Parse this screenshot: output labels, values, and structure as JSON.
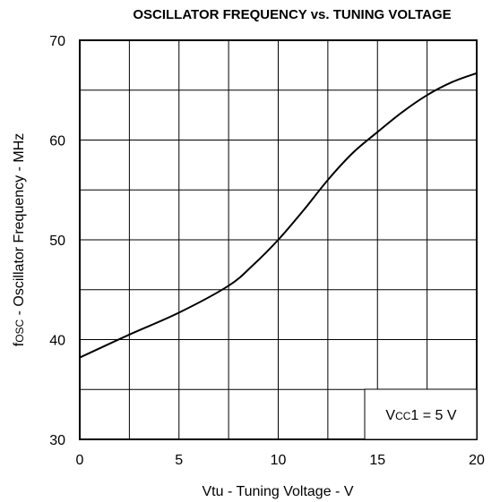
{
  "chart_data": {
    "type": "line",
    "title": "OSCILLATOR FREQUENCY vs. TUNING VOLTAGE",
    "xlabel": "Vtu - Tuning Voltage - V",
    "ylabel": {
      "symbol": "f",
      "subscript": "OSC",
      "text": " - Oscillator Frequency - MHz"
    },
    "annotation": {
      "symbol": "V",
      "subscript": "CC",
      "text": "1 = 5 V"
    },
    "x": [
      0,
      2.5,
      5,
      7.5,
      8.75,
      10,
      11.25,
      12.5,
      13.75,
      15,
      16.25,
      17.5,
      18.75,
      20
    ],
    "series": [
      {
        "name": "fOSC",
        "color": "#000000",
        "values": [
          38.2,
          40.5,
          42.7,
          45.4,
          47.5,
          50,
          52.9,
          56,
          58.7,
          60.8,
          62.8,
          64.5,
          65.8,
          66.7
        ]
      }
    ],
    "xlim": [
      0,
      20
    ],
    "xticks": [
      0,
      5,
      10,
      15,
      20
    ],
    "xminor_ticks": [
      2.5,
      7.5,
      12.5,
      17.5
    ],
    "ylim": [
      30,
      70
    ],
    "yticks": [
      30,
      40,
      50,
      60,
      70
    ],
    "yminor_ticks": [
      35,
      45,
      55,
      65
    ],
    "grid": true
  }
}
